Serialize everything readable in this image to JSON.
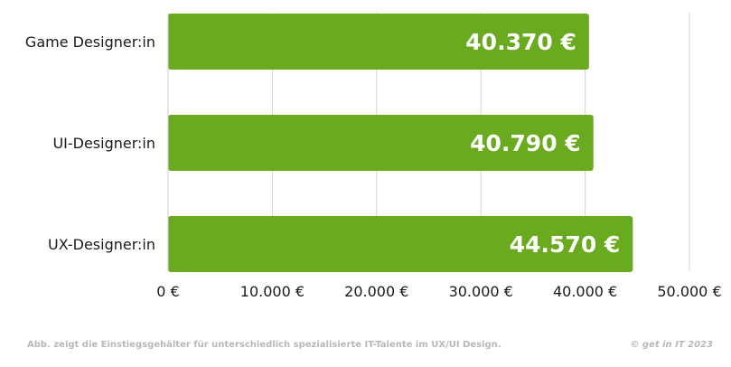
{
  "chart_data": {
    "type": "bar",
    "orientation": "horizontal",
    "categories": [
      "Game Designer:in",
      "UI-Designer:in",
      "UX-Designer:in"
    ],
    "values": [
      40370,
      40790,
      44570
    ],
    "value_labels": [
      "40.370 €",
      "40.790 €",
      "44.570 €"
    ],
    "xlim": [
      0,
      50000
    ],
    "x_ticks": [
      0,
      10000,
      20000,
      30000,
      40000,
      50000
    ],
    "x_tick_labels": [
      "0 €",
      "10.000 €",
      "20.000 €",
      "30.000 €",
      "40.000 €",
      "50.000 €"
    ],
    "grid": "vertical",
    "bar_color": "#6aaa1e",
    "label_color": "#ffffff",
    "grid_color": "#d4d4d4"
  },
  "footer": {
    "caption": "Abb. zeigt die Einstiegsgehälter für unterschiedlich spezialisierte IT-Talente im UX/UI Design.",
    "copyright": "© get in IT 2023"
  }
}
